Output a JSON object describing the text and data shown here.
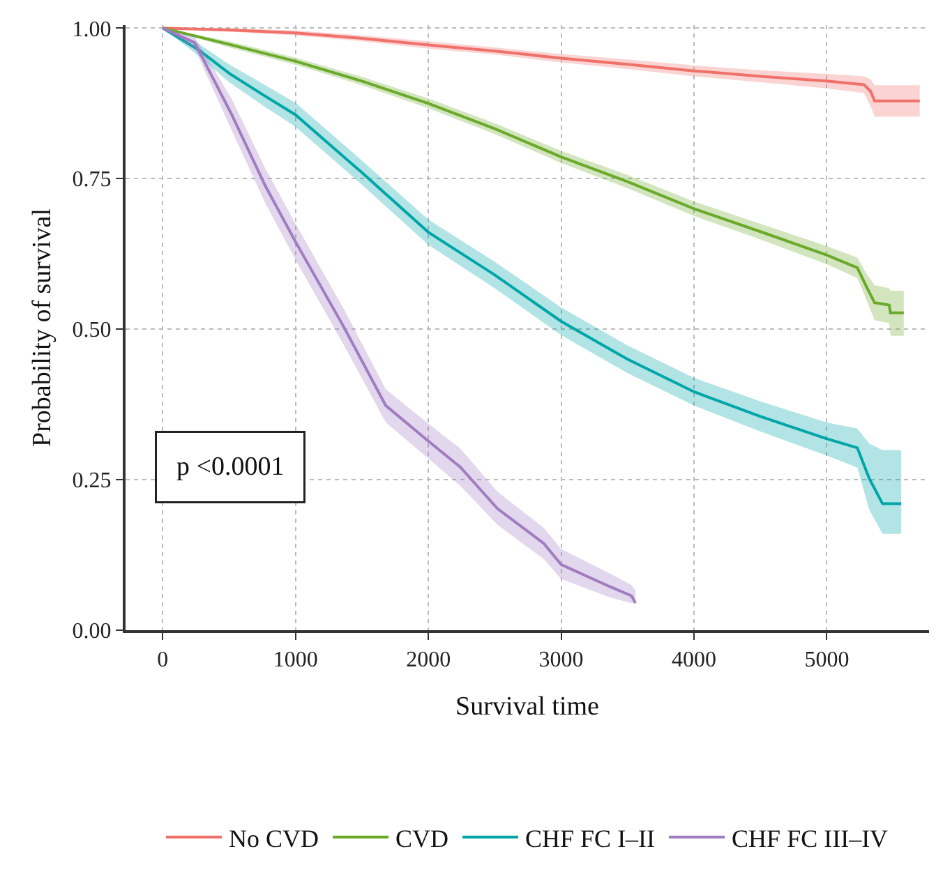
{
  "chart_data": {
    "type": "line",
    "xlabel": "Survival time",
    "ylabel": "Probability of survival",
    "xlim": [
      -280,
      5770
    ],
    "xticks": [
      0,
      1000,
      2000,
      3000,
      4000,
      5000
    ],
    "ylim": [
      0,
      1.005
    ],
    "yticks": [
      {
        "value": 0,
        "label": "0.00"
      },
      {
        "value": 0.25,
        "label": "0.25"
      },
      {
        "value": 0.5,
        "label": "0.50"
      },
      {
        "value": 0.75,
        "label": "0.75"
      },
      {
        "value": 1,
        "label": "1.00"
      }
    ],
    "grid": true,
    "legend": "bottom",
    "marker": "none",
    "line_style": "solid",
    "annotations": [
      "p <0.0001"
    ],
    "series": [
      {
        "name": "No CVD",
        "color": "#f0706a",
        "x": [
          0,
          500,
          1000,
          1500,
          2000,
          2500,
          3000,
          3500,
          4000,
          4500,
          5000,
          5280,
          5330,
          5360,
          5700
        ],
        "values": [
          1,
          0.997,
          0.992,
          0.983,
          0.972,
          0.962,
          0.95,
          0.94,
          0.929,
          0.92,
          0.912,
          0.906,
          0.895,
          0.879,
          0.879
        ],
        "lower": [
          1,
          0.994,
          0.988,
          0.978,
          0.966,
          0.956,
          0.943,
          0.932,
          0.92,
          0.91,
          0.9,
          0.892,
          0.87,
          0.853,
          0.853
        ],
        "upper": [
          1,
          1,
          0.996,
          0.988,
          0.978,
          0.968,
          0.957,
          0.948,
          0.938,
          0.93,
          0.924,
          0.92,
          0.915,
          0.905,
          0.905
        ]
      },
      {
        "name": "CVD",
        "color": "#6aaa2a",
        "x": [
          0,
          500,
          1000,
          1500,
          2000,
          2500,
          3000,
          3500,
          4000,
          4500,
          5000,
          5230,
          5300,
          5360,
          5470,
          5480,
          5580
        ],
        "values": [
          1,
          0.973,
          0.945,
          0.912,
          0.875,
          0.833,
          0.786,
          0.745,
          0.7,
          0.662,
          0.623,
          0.602,
          0.57,
          0.544,
          0.54,
          0.527,
          0.527
        ],
        "lower": [
          1,
          0.968,
          0.939,
          0.905,
          0.867,
          0.824,
          0.776,
          0.734,
          0.688,
          0.649,
          0.608,
          0.585,
          0.548,
          0.515,
          0.51,
          0.489,
          0.489
        ],
        "upper": [
          1,
          0.978,
          0.951,
          0.919,
          0.883,
          0.842,
          0.796,
          0.756,
          0.712,
          0.675,
          0.638,
          0.619,
          0.592,
          0.573,
          0.568,
          0.564,
          0.564
        ]
      },
      {
        "name": "CHF FC I–II",
        "color": "#00a5a8",
        "x": [
          0,
          270,
          500,
          750,
          1000,
          1500,
          2000,
          2500,
          3000,
          3500,
          4000,
          4500,
          5000,
          5230,
          5320,
          5420,
          5560
        ],
        "values": [
          1,
          0.964,
          0.925,
          0.89,
          0.856,
          0.76,
          0.661,
          0.59,
          0.513,
          0.45,
          0.396,
          0.355,
          0.318,
          0.303,
          0.252,
          0.21,
          0.21
        ],
        "lower": [
          1,
          0.954,
          0.91,
          0.872,
          0.836,
          0.74,
          0.64,
          0.568,
          0.49,
          0.427,
          0.373,
          0.33,
          0.29,
          0.27,
          0.2,
          0.16,
          0.16
        ],
        "upper": [
          1,
          0.974,
          0.94,
          0.908,
          0.876,
          0.78,
          0.682,
          0.612,
          0.536,
          0.473,
          0.419,
          0.38,
          0.345,
          0.335,
          0.31,
          0.299,
          0.299
        ]
      },
      {
        "name": "CHF FC III–IV",
        "color": "#a07cc0",
        "x": [
          0,
          240,
          520,
          770,
          1000,
          1360,
          1680,
          2000,
          2240,
          2520,
          2870,
          3000,
          3360,
          3530,
          3560
        ],
        "values": [
          1,
          0.976,
          0.856,
          0.739,
          0.645,
          0.505,
          0.373,
          0.314,
          0.271,
          0.202,
          0.144,
          0.109,
          0.073,
          0.057,
          0.045
        ],
        "lower": [
          1,
          0.966,
          0.83,
          0.71,
          0.615,
          0.475,
          0.345,
          0.285,
          0.24,
          0.175,
          0.118,
          0.085,
          0.055,
          0.045,
          0.045
        ],
        "upper": [
          1,
          0.986,
          0.882,
          0.768,
          0.675,
          0.535,
          0.4,
          0.343,
          0.302,
          0.23,
          0.17,
          0.135,
          0.095,
          0.075,
          0.065
        ]
      }
    ]
  }
}
